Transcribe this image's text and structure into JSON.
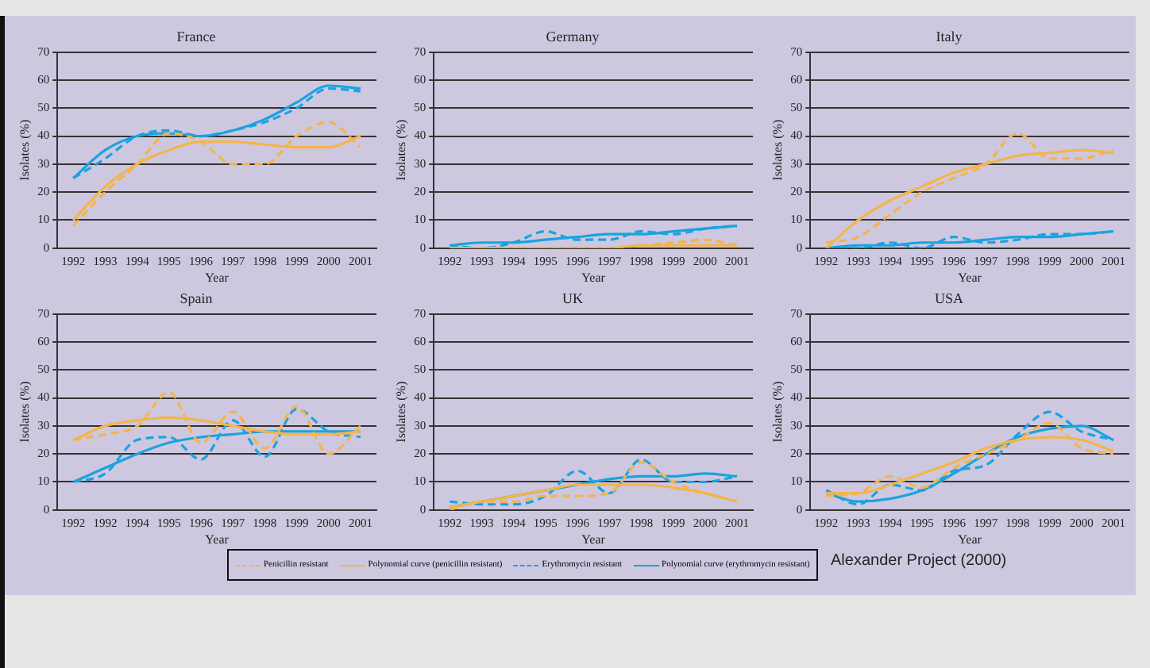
{
  "chart_data": [
    {
      "type": "line",
      "title": "France",
      "xlabel": "Year",
      "ylabel": "Isolates (%)",
      "categories": [
        "1992",
        "1993",
        "1994",
        "1995",
        "1996",
        "1997",
        "1998",
        "1999",
        "2000",
        "2001"
      ],
      "ylim": [
        0,
        70
      ],
      "yticks": [
        0,
        10,
        20,
        30,
        40,
        50,
        60,
        70
      ],
      "grid": "y",
      "marker": "none",
      "legend": "bottom",
      "series": [
        {
          "name": "Penicillin resistant",
          "color": "#f5b44a",
          "line_style": "dashed",
          "values": [
            8,
            20,
            30,
            41,
            38,
            30,
            30,
            40,
            45,
            36
          ]
        },
        {
          "name": "Polynomial curve (penicillin resistant)",
          "color": "#f5b44a",
          "line_style": "solid",
          "values": [
            10,
            22,
            30,
            35,
            38,
            38,
            37,
            36,
            36,
            40
          ]
        },
        {
          "name": "Erythromycin resistant",
          "color": "#1aa3e0",
          "line_style": "dashed",
          "values": [
            25,
            32,
            40,
            42,
            40,
            42,
            45,
            50,
            57,
            56
          ]
        },
        {
          "name": "Polynomial curve (erythromycin resistant)",
          "color": "#1aa3e0",
          "line_style": "solid",
          "values": [
            25,
            35,
            40,
            41,
            40,
            42,
            46,
            52,
            58,
            57
          ]
        }
      ]
    },
    {
      "type": "line",
      "title": "Germany",
      "xlabel": "Year",
      "ylabel": "Isolates (%)",
      "categories": [
        "1992",
        "1993",
        "1994",
        "1995",
        "1996",
        "1997",
        "1998",
        "1999",
        "2000",
        "2001"
      ],
      "ylim": [
        0,
        70
      ],
      "yticks": [
        0,
        10,
        20,
        30,
        40,
        50,
        60,
        70
      ],
      "grid": "y",
      "marker": "none",
      "series": [
        {
          "color": "#f5b44a",
          "line_style": "dashed",
          "values": [
            0,
            0,
            0,
            0,
            0,
            0,
            1,
            2,
            3,
            1
          ]
        },
        {
          "color": "#f5b44a",
          "line_style": "solid",
          "values": [
            0,
            0,
            0,
            0,
            0,
            0,
            1,
            1,
            1,
            1
          ]
        },
        {
          "color": "#1aa3e0",
          "line_style": "dashed",
          "values": [
            1,
            0,
            2,
            6,
            3,
            3,
            6,
            5,
            7,
            8
          ]
        },
        {
          "color": "#1aa3e0",
          "line_style": "solid",
          "values": [
            1,
            2,
            2,
            3,
            4,
            5,
            5,
            6,
            7,
            8
          ]
        }
      ]
    },
    {
      "type": "line",
      "title": "Italy",
      "xlabel": "Year",
      "ylabel": "Isolates (%)",
      "categories": [
        "1992",
        "1993",
        "1994",
        "1995",
        "1996",
        "1997",
        "1998",
        "1999",
        "2000",
        "2001"
      ],
      "ylim": [
        0,
        70
      ],
      "yticks": [
        0,
        10,
        20,
        30,
        40,
        50,
        60,
        70
      ],
      "grid": "y",
      "marker": "none",
      "series": [
        {
          "color": "#f5b44a",
          "line_style": "dashed",
          "values": [
            2,
            4,
            12,
            20,
            25,
            30,
            41,
            32,
            32,
            35
          ]
        },
        {
          "color": "#f5b44a",
          "line_style": "solid",
          "values": [
            0,
            10,
            17,
            22,
            27,
            30,
            33,
            34,
            35,
            34
          ]
        },
        {
          "color": "#1aa3e0",
          "line_style": "dashed",
          "values": [
            0,
            0,
            2,
            0,
            4,
            2,
            3,
            5,
            5,
            6
          ]
        },
        {
          "color": "#1aa3e0",
          "line_style": "solid",
          "values": [
            0,
            1,
            1,
            2,
            2,
            3,
            4,
            4,
            5,
            6
          ]
        }
      ]
    },
    {
      "type": "line",
      "title": "Spain",
      "xlabel": "Year",
      "ylabel": "Isolates (%)",
      "categories": [
        "1992",
        "1992",
        "1994",
        "1995",
        "1996",
        "1997",
        "1998",
        "1999",
        "2000",
        "2001"
      ],
      "ylim": [
        0,
        70
      ],
      "yticks": [
        0,
        10,
        20,
        30,
        40,
        50,
        60,
        70
      ],
      "grid": "y",
      "marker": "none",
      "series": [
        {
          "color": "#f5b44a",
          "line_style": "dashed",
          "values": [
            25,
            27,
            30,
            42,
            24,
            35,
            22,
            37,
            20,
            30
          ]
        },
        {
          "color": "#f5b44a",
          "line_style": "solid",
          "values": [
            25,
            30,
            32,
            33,
            32,
            30,
            28,
            27,
            27,
            28
          ]
        },
        {
          "color": "#1aa3e0",
          "line_style": "dashed",
          "values": [
            10,
            13,
            25,
            26,
            18,
            32,
            19,
            36,
            28,
            26
          ]
        },
        {
          "color": "#1aa3e0",
          "line_style": "solid",
          "values": [
            10,
            15,
            20,
            24,
            26,
            27,
            28,
            28,
            28,
            28
          ]
        }
      ]
    },
    {
      "type": "line",
      "title": "UK",
      "xlabel": "Year",
      "ylabel": "Isolates (%)",
      "categories": [
        "1992",
        "1993",
        "1994",
        "1995",
        "1996",
        "1997",
        "1998",
        "1999",
        "2000",
        "2001"
      ],
      "ylim": [
        0,
        70
      ],
      "yticks": [
        0,
        10,
        20,
        30,
        40,
        50,
        60,
        70
      ],
      "grid": "y",
      "marker": "none",
      "series": [
        {
          "color": "#f5b44a",
          "line_style": "dashed",
          "values": [
            0,
            3,
            3,
            5,
            5,
            6,
            17,
            10,
            6,
            3
          ]
        },
        {
          "color": "#f5b44a",
          "line_style": "solid",
          "values": [
            1,
            3,
            5,
            7,
            9,
            9,
            9,
            8,
            6,
            3
          ]
        },
        {
          "color": "#1aa3e0",
          "line_style": "dashed",
          "values": [
            3,
            2,
            2,
            5,
            14,
            6,
            18,
            10,
            10,
            12
          ]
        },
        {
          "color": "#1aa3e0",
          "line_style": "solid",
          "values": [
            1,
            3,
            5,
            7,
            9,
            11,
            12,
            12,
            13,
            12
          ]
        }
      ]
    },
    {
      "type": "line",
      "title": "USA",
      "xlabel": "Year",
      "ylabel": "Isolates (%)",
      "categories": [
        "1992",
        "1993",
        "1994",
        "1995",
        "1996",
        "1997",
        "1998",
        "1999",
        "2000",
        "2001"
      ],
      "ylim": [
        0,
        70
      ],
      "yticks": [
        0,
        10,
        20,
        30,
        40,
        50,
        60,
        70
      ],
      "grid": "y",
      "marker": "none",
      "annotations": [
        "Alexander Project (2000)"
      ],
      "series": [
        {
          "color": "#f5b44a",
          "line_style": "dashed",
          "values": [
            5,
            6,
            12,
            8,
            15,
            20,
            25,
            31,
            22,
            20
          ]
        },
        {
          "color": "#f5b44a",
          "line_style": "solid",
          "values": [
            6,
            6,
            9,
            13,
            17,
            22,
            25,
            26,
            25,
            21
          ]
        },
        {
          "color": "#1aa3e0",
          "line_style": "dashed",
          "values": [
            7,
            2,
            9,
            7,
            14,
            16,
            27,
            35,
            28,
            25
          ]
        },
        {
          "color": "#1aa3e0",
          "line_style": "solid",
          "values": [
            6,
            3,
            4,
            7,
            13,
            20,
            26,
            29,
            30,
            25
          ]
        }
      ]
    }
  ]
}
